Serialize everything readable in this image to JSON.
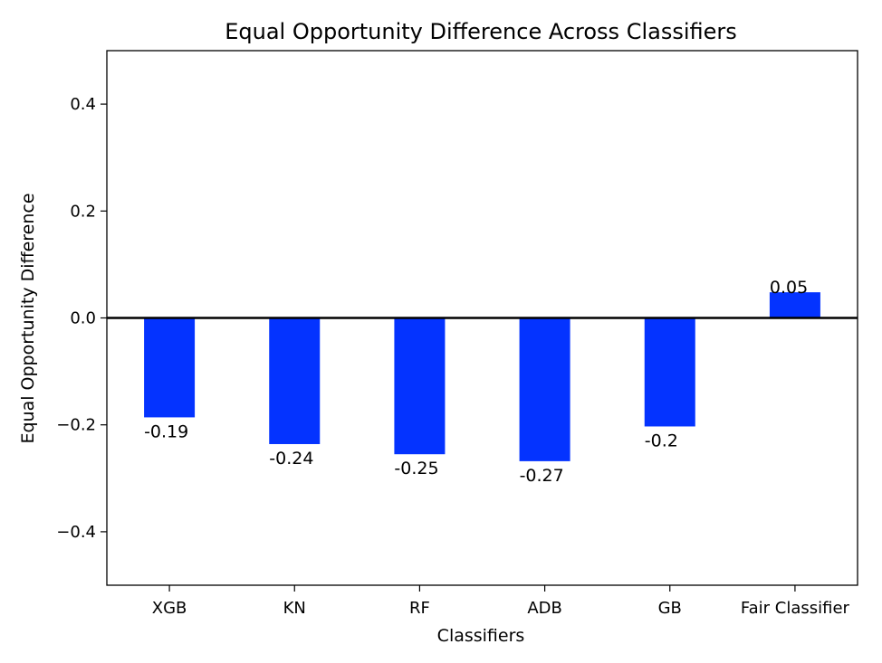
{
  "chart_data": {
    "type": "bar",
    "title": "Equal Opportunity Difference Across Classifiers",
    "xlabel": "Classifiers",
    "ylabel": "Equal Opportunity Difference",
    "categories": [
      "XGB",
      "KN",
      "RF",
      "ADB",
      "GB",
      "Fair Classifier"
    ],
    "values": [
      -0.186,
      -0.236,
      -0.255,
      -0.268,
      -0.203,
      0.048
    ],
    "data_labels": [
      "-0.19",
      "-0.24",
      "-0.25",
      "-0.27",
      "-0.2",
      "0.05"
    ],
    "ylim": [
      -0.5,
      0.5
    ],
    "yticks": [
      -0.4,
      -0.2,
      0.0,
      0.2,
      0.4
    ],
    "ytick_labels": [
      "−0.4",
      "−0.2",
      "0.0",
      "0.2",
      "0.4"
    ],
    "bar_color": "#0433ff",
    "zero_line": true,
    "grid": false,
    "legend": "none"
  }
}
